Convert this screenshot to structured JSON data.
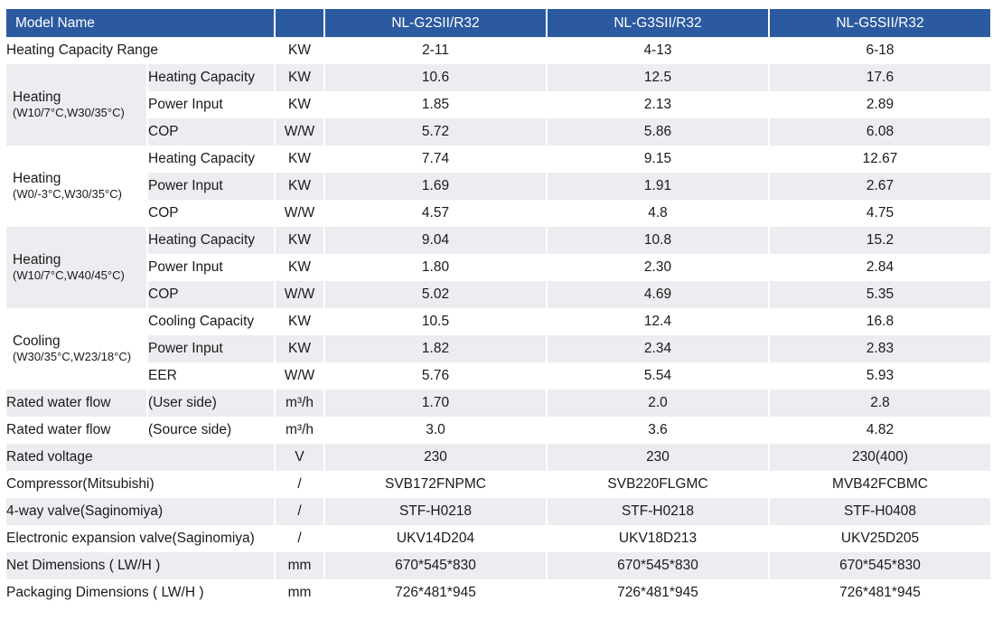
{
  "header": {
    "model_label": "Model Name",
    "models": [
      "NL-G2SII/R32",
      "NL-G3SII/R32",
      "NL-G5SII/R32"
    ]
  },
  "rows": {
    "heating_capacity_range": {
      "label": "Heating Capacity Range",
      "unit": "KW",
      "values": [
        "2-11",
        "4-13",
        "6-18"
      ]
    },
    "heat_a": {
      "title": "Heating",
      "condition": "(W10/7°C,W30/35°C)",
      "capacity": {
        "label": "Heating Capacity",
        "unit": "KW",
        "values": [
          "10.6",
          "12.5",
          "17.6"
        ]
      },
      "power": {
        "label": "Power Input",
        "unit": "KW",
        "values": [
          "1.85",
          "2.13",
          "2.89"
        ]
      },
      "cop": {
        "label": "COP",
        "unit": "W/W",
        "values": [
          "5.72",
          "5.86",
          "6.08"
        ]
      }
    },
    "heat_b": {
      "title": "Heating",
      "condition": "(W0/-3°C,W30/35°C)",
      "capacity": {
        "label": "Heating Capacity",
        "unit": "KW",
        "values": [
          "7.74",
          "9.15",
          "12.67"
        ]
      },
      "power": {
        "label": "Power Input",
        "unit": "KW",
        "values": [
          "1.69",
          "1.91",
          "2.67"
        ]
      },
      "cop": {
        "label": "COP",
        "unit": "W/W",
        "values": [
          "4.57",
          "4.8",
          "4.75"
        ]
      }
    },
    "heat_c": {
      "title": "Heating",
      "condition": "(W10/7°C,W40/45°C)",
      "capacity": {
        "label": "Heating Capacity",
        "unit": "KW",
        "values": [
          "9.04",
          "10.8",
          "15.2"
        ]
      },
      "power": {
        "label": "Power Input",
        "unit": "KW",
        "values": [
          "1.80",
          "2.30",
          "2.84"
        ]
      },
      "cop": {
        "label": "COP",
        "unit": "W/W",
        "values": [
          "5.02",
          "4.69",
          "5.35"
        ]
      }
    },
    "cool": {
      "title": "Cooling",
      "condition": "(W30/35°C,W23/18°C)",
      "capacity": {
        "label": "Cooling Capacity",
        "unit": "KW",
        "values": [
          "10.5",
          "12.4",
          "16.8"
        ]
      },
      "power": {
        "label": "Power Input",
        "unit": "KW",
        "values": [
          "1.82",
          "2.34",
          "2.83"
        ]
      },
      "eer": {
        "label": "EER",
        "unit": "W/W",
        "values": [
          "5.76",
          "5.54",
          "5.93"
        ]
      }
    },
    "water_user": {
      "label": "Rated water flow",
      "sub": "(User side)",
      "unit": "m³/h",
      "values": [
        "1.70",
        "2.0",
        "2.8"
      ]
    },
    "water_source": {
      "label": "Rated water flow",
      "sub": "(Source side)",
      "unit": "m³/h",
      "values": [
        "3.0",
        "3.6",
        "4.82"
      ]
    },
    "voltage": {
      "label": "Rated voltage",
      "unit": "V",
      "values": [
        "230",
        "230",
        "230(400)"
      ]
    },
    "compressor": {
      "label": "Compressor(Mitsubishi)",
      "unit": "/",
      "values": [
        "SVB172FNPMC",
        "SVB220FLGMC",
        "MVB42FCBMC"
      ]
    },
    "valve4": {
      "label": "4-way valve(Saginomiya)",
      "unit": "/",
      "values": [
        "STF-H0218",
        "STF-H0218",
        "STF-H0408"
      ]
    },
    "eev": {
      "label": "Electronic expansion valve(Saginomiya)",
      "unit": "/",
      "values": [
        "UKV14D204",
        "UKV18D213",
        "UKV25D205"
      ]
    },
    "net_dim": {
      "label": "Net Dimensions ( LW/H )",
      "unit": "mm",
      "values": [
        "670*545*830",
        "670*545*830",
        "670*545*830"
      ]
    },
    "pack_dim": {
      "label": "Packaging Dimensions ( LW/H )",
      "unit": "mm",
      "values": [
        "726*481*945",
        "726*481*945",
        "726*481*945"
      ]
    }
  },
  "colors": {
    "header_bg": "#2c5aa0",
    "header_text": "#ffffff",
    "shade_row": "#ebedf0"
  }
}
